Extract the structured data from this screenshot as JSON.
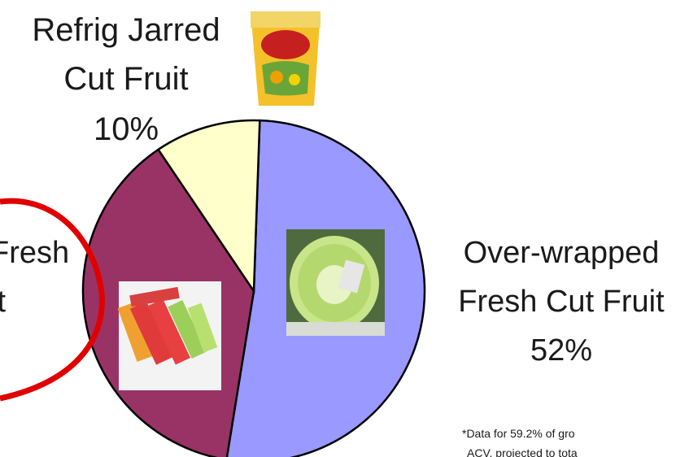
{
  "chart_data": {
    "type": "pie",
    "slices": [
      {
        "label_lines": [
          "Over-wrapped",
          "Fresh Cut Fruit"
        ],
        "value_label": "52%",
        "value": 52,
        "color": "#9999ff"
      },
      {
        "label_lines": [
          "Fresh",
          "it"
        ],
        "value_label": "",
        "value": 38,
        "color": "#993366"
      },
      {
        "label_lines": [
          "Refrig Jarred",
          "Cut Fruit"
        ],
        "value_label": "10%",
        "value": 10,
        "color": "#ffffcc"
      }
    ],
    "footnote_lines": [
      "*Data for 59.2% of gro",
      "ACV, projected to tota"
    ],
    "highlight_color": "#e00000"
  }
}
